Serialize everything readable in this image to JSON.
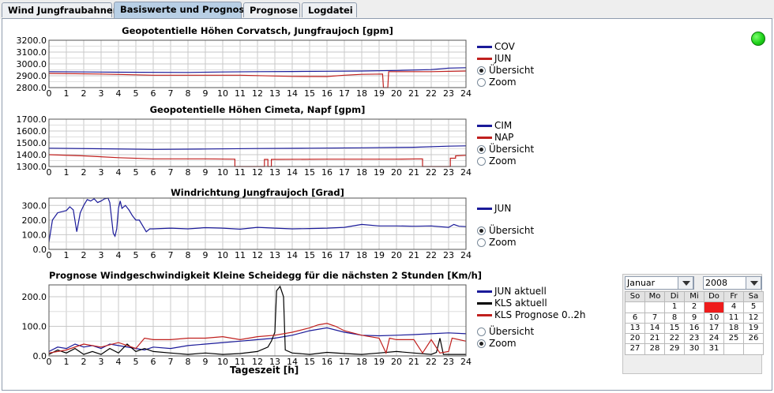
{
  "tabs": [
    {
      "label": "Wind Jungfraubahnen",
      "active": false
    },
    {
      "label": "Basiswerte und Prognose",
      "active": true
    },
    {
      "label": "Prognose",
      "active": false
    },
    {
      "label": "Logdatei",
      "active": false
    }
  ],
  "status_color": "#1fd21a",
  "radio_labels": {
    "overview": "Übersicht",
    "zoom": "Zoom"
  },
  "x_axis_label": "Tageszeit [h]",
  "calendar": {
    "month": "Januar",
    "year": "2008",
    "weekdays": [
      "So",
      "Mo",
      "Di",
      "Mi",
      "Do",
      "Fr",
      "Sa"
    ],
    "weeks": [
      [
        "",
        "",
        "1",
        "2",
        "3",
        "4",
        "5"
      ],
      [
        "6",
        "7",
        "8",
        "9",
        "10",
        "11",
        "12"
      ],
      [
        "13",
        "14",
        "15",
        "16",
        "17",
        "18",
        "19"
      ],
      [
        "20",
        "21",
        "22",
        "23",
        "24",
        "25",
        "26"
      ],
      [
        "27",
        "28",
        "29",
        "30",
        "31",
        "",
        ""
      ]
    ],
    "selected_day": "3",
    "selected_color": "#ee1c1c"
  },
  "chart_data": [
    {
      "type": "line",
      "title": "Geopotentielle Höhen Corvatsch, Jungfraujoch [gpm]",
      "xlim": [
        0,
        24
      ],
      "ylim": [
        2800,
        3200
      ],
      "yticks": [
        "2800.0",
        "2900.0",
        "3000.0",
        "3100.0",
        "3200.0"
      ],
      "xticks": [
        "0",
        "1",
        "2",
        "3",
        "4",
        "5",
        "6",
        "7",
        "8",
        "9",
        "10",
        "11",
        "12",
        "13",
        "14",
        "15",
        "16",
        "17",
        "18",
        "19",
        "20",
        "21",
        "22",
        "23",
        "24"
      ],
      "grid": true,
      "legend_position": "right",
      "mode": "overview",
      "series": [
        {
          "name": "COV",
          "color": "#1a1a99",
          "points": [
            [
              0,
              2935
            ],
            [
              4,
              2930
            ],
            [
              8,
              2928
            ],
            [
              10,
              2932
            ],
            [
              12,
              2935
            ],
            [
              14,
              2936
            ],
            [
              16,
              2938
            ],
            [
              18,
              2940
            ],
            [
              20,
              2945
            ],
            [
              22,
              2952
            ],
            [
              23,
              2965
            ],
            [
              24,
              2968
            ]
          ]
        },
        {
          "name": "JUN",
          "color": "#c0201e",
          "points": [
            [
              0,
              2920
            ],
            [
              3,
              2915
            ],
            [
              6,
              2905
            ],
            [
              9,
              2905
            ],
            [
              11,
              2905
            ],
            [
              13,
              2898
            ],
            [
              14,
              2895
            ],
            [
              16,
              2893
            ],
            [
              17,
              2905
            ],
            [
              18,
              2912
            ],
            [
              19.2,
              2915
            ],
            [
              19.25,
              2800
            ],
            [
              19.5,
              2800
            ],
            [
              19.55,
              2935
            ],
            [
              20,
              2935
            ],
            [
              22,
              2935
            ],
            [
              24,
              2940
            ]
          ]
        }
      ]
    },
    {
      "type": "line",
      "title": "Geopotentielle Höhen Cimeta, Napf [gpm]",
      "xlim": [
        0,
        24
      ],
      "ylim": [
        1300,
        1700
      ],
      "yticks": [
        "1300.0",
        "1400.0",
        "1500.0",
        "1600.0",
        "1700.0"
      ],
      "xticks": [
        "0",
        "1",
        "2",
        "3",
        "4",
        "5",
        "6",
        "7",
        "8",
        "9",
        "10",
        "11",
        "12",
        "13",
        "14",
        "15",
        "16",
        "17",
        "18",
        "19",
        "20",
        "21",
        "22",
        "23",
        "24"
      ],
      "grid": true,
      "legend_position": "right",
      "mode": "overview",
      "series": [
        {
          "name": "CIM",
          "color": "#1a1a99",
          "points": [
            [
              0,
              1455
            ],
            [
              3,
              1450
            ],
            [
              6,
              1445
            ],
            [
              9,
              1448
            ],
            [
              12,
              1452
            ],
            [
              15,
              1455
            ],
            [
              18,
              1458
            ],
            [
              21,
              1463
            ],
            [
              23,
              1472
            ],
            [
              24,
              1475
            ]
          ]
        },
        {
          "name": "NAP",
          "color": "#c0201e",
          "points": [
            [
              0,
              1400
            ],
            [
              2,
              1390
            ],
            [
              4,
              1375
            ],
            [
              6,
              1365
            ],
            [
              9,
              1365
            ],
            [
              10.7,
              1362
            ],
            [
              10.7,
              1300
            ],
            [
              10.8,
              1300
            ],
            [
              10.8,
              1300
            ],
            [
              11.5,
              1300
            ],
            [
              12.4,
              1300
            ],
            [
              12.4,
              1360
            ],
            [
              12.6,
              1360
            ],
            [
              12.6,
              1300
            ],
            [
              12.8,
              1300
            ],
            [
              12.8,
              1360
            ],
            [
              16,
              1362
            ],
            [
              20,
              1362
            ],
            [
              21.5,
              1365
            ],
            [
              21.5,
              1300
            ],
            [
              23.1,
              1300
            ],
            [
              23.1,
              1370
            ],
            [
              23.4,
              1370
            ],
            [
              23.4,
              1390
            ],
            [
              24,
              1395
            ]
          ]
        }
      ]
    },
    {
      "type": "line",
      "title": "Windrichtung Jungfraujoch [Grad]",
      "xlim": [
        0,
        24
      ],
      "ylim": [
        0,
        350
      ],
      "yticks": [
        "0.0",
        "100.0",
        "200.0",
        "300.0"
      ],
      "xticks": [
        "0",
        "1",
        "2",
        "3",
        "4",
        "5",
        "6",
        "7",
        "8",
        "9",
        "10",
        "11",
        "12",
        "13",
        "14",
        "15",
        "16",
        "17",
        "18",
        "19",
        "20",
        "21",
        "22",
        "23",
        "24"
      ],
      "grid": true,
      "legend_position": "right",
      "mode": "overview",
      "series": [
        {
          "name": "JUN",
          "color": "#1a1a99",
          "points": [
            [
              0,
              50
            ],
            [
              0.2,
              200
            ],
            [
              0.5,
              250
            ],
            [
              1,
              265
            ],
            [
              1.2,
              290
            ],
            [
              1.4,
              270
            ],
            [
              1.6,
              120
            ],
            [
              1.8,
              250
            ],
            [
              2,
              300
            ],
            [
              2.2,
              340
            ],
            [
              2.4,
              330
            ],
            [
              2.6,
              345
            ],
            [
              2.8,
              320
            ],
            [
              3,
              330
            ],
            [
              3.2,
              345
            ],
            [
              3.4,
              350
            ],
            [
              3.5,
              320
            ],
            [
              3.7,
              110
            ],
            [
              3.8,
              90
            ],
            [
              3.9,
              140
            ],
            [
              4,
              280
            ],
            [
              4.1,
              330
            ],
            [
              4.2,
              280
            ],
            [
              4.4,
              300
            ],
            [
              4.6,
              270
            ],
            [
              4.8,
              230
            ],
            [
              5,
              200
            ],
            [
              5.2,
              200
            ],
            [
              5.4,
              160
            ],
            [
              5.6,
              120
            ],
            [
              5.8,
              140
            ],
            [
              6,
              140
            ],
            [
              7,
              145
            ],
            [
              8,
              140
            ],
            [
              9,
              148
            ],
            [
              10,
              145
            ],
            [
              11,
              138
            ],
            [
              12,
              150
            ],
            [
              13,
              145
            ],
            [
              14,
              140
            ],
            [
              15,
              142
            ],
            [
              16,
              145
            ],
            [
              17,
              150
            ],
            [
              18,
              170
            ],
            [
              19,
              160
            ],
            [
              20,
              160
            ],
            [
              21,
              158
            ],
            [
              22,
              160
            ],
            [
              23,
              150
            ],
            [
              23.3,
              170
            ],
            [
              23.6,
              158
            ],
            [
              24,
              155
            ]
          ]
        }
      ]
    },
    {
      "type": "line",
      "title": "Prognose Windgeschwindigkeit Kleine Scheidegg für die nächsten 2 Stunden [Km/h]",
      "xlim": [
        0,
        24
      ],
      "ylim": [
        0,
        240
      ],
      "yticks": [
        "0.0",
        "100.0",
        "200.0"
      ],
      "xticks": [
        "0",
        "1",
        "2",
        "3",
        "4",
        "5",
        "6",
        "7",
        "8",
        "9",
        "10",
        "11",
        "12",
        "13",
        "14",
        "15",
        "16",
        "17",
        "18",
        "19",
        "20",
        "21",
        "22",
        "23",
        "24"
      ],
      "grid": true,
      "legend_position": "right",
      "mode": "zoom",
      "series": [
        {
          "name": "JUN aktuell",
          "color": "#1a1a99",
          "points": [
            [
              0,
              15
            ],
            [
              0.5,
              30
            ],
            [
              1,
              25
            ],
            [
              1.5,
              40
            ],
            [
              2,
              30
            ],
            [
              2.5,
              35
            ],
            [
              3,
              25
            ],
            [
              3.5,
              40
            ],
            [
              4,
              35
            ],
            [
              5,
              25
            ],
            [
              5.5,
              20
            ],
            [
              6,
              30
            ],
            [
              7,
              25
            ],
            [
              8,
              35
            ],
            [
              9,
              40
            ],
            [
              10,
              45
            ],
            [
              11,
              50
            ],
            [
              12,
              55
            ],
            [
              13,
              60
            ],
            [
              14,
              70
            ],
            [
              15,
              85
            ],
            [
              16,
              95
            ],
            [
              17,
              80
            ],
            [
              18,
              70
            ],
            [
              19,
              68
            ],
            [
              20,
              70
            ],
            [
              21,
              72
            ],
            [
              22,
              75
            ],
            [
              23,
              78
            ],
            [
              24,
              75
            ]
          ]
        },
        {
          "name": "KLS aktuell",
          "color": "#000000",
          "points": [
            [
              0,
              5
            ],
            [
              0.5,
              20
            ],
            [
              1,
              10
            ],
            [
              1.5,
              25
            ],
            [
              2,
              5
            ],
            [
              2.5,
              15
            ],
            [
              3,
              5
            ],
            [
              3.5,
              25
            ],
            [
              4,
              10
            ],
            [
              4.5,
              40
            ],
            [
              5,
              15
            ],
            [
              5.5,
              25
            ],
            [
              6,
              15
            ],
            [
              7,
              10
            ],
            [
              8,
              5
            ],
            [
              9,
              10
            ],
            [
              10,
              5
            ],
            [
              11,
              8
            ],
            [
              12,
              15
            ],
            [
              12.6,
              30
            ],
            [
              12.8,
              50
            ],
            [
              13,
              80
            ],
            [
              13.1,
              220
            ],
            [
              13.3,
              235
            ],
            [
              13.5,
              200
            ],
            [
              13.6,
              20
            ],
            [
              14,
              10
            ],
            [
              15,
              5
            ],
            [
              16,
              12
            ],
            [
              17,
              8
            ],
            [
              18,
              5
            ],
            [
              19,
              10
            ],
            [
              20,
              15
            ],
            [
              21,
              10
            ],
            [
              22,
              5
            ],
            [
              22.3,
              12
            ],
            [
              22.5,
              60
            ],
            [
              22.7,
              5
            ],
            [
              23,
              5
            ],
            [
              24,
              5
            ]
          ]
        },
        {
          "name": "KLS Prognose 0..2h",
          "color": "#c0201e",
          "points": [
            [
              0,
              10
            ],
            [
              1,
              20
            ],
            [
              2,
              40
            ],
            [
              3,
              30
            ],
            [
              4,
              45
            ],
            [
              5,
              25
            ],
            [
              5.5,
              60
            ],
            [
              6,
              55
            ],
            [
              7,
              55
            ],
            [
              8,
              60
            ],
            [
              9,
              60
            ],
            [
              10,
              65
            ],
            [
              11,
              55
            ],
            [
              12,
              65
            ],
            [
              13,
              70
            ],
            [
              14,
              80
            ],
            [
              15,
              95
            ],
            [
              15.5,
              105
            ],
            [
              16,
              110
            ],
            [
              16.5,
              100
            ],
            [
              17,
              85
            ],
            [
              18,
              70
            ],
            [
              19,
              60
            ],
            [
              19.4,
              10
            ],
            [
              19.6,
              60
            ],
            [
              20,
              55
            ],
            [
              21,
              55
            ],
            [
              21.5,
              10
            ],
            [
              22,
              55
            ],
            [
              22.5,
              10
            ],
            [
              23,
              15
            ],
            [
              23.2,
              60
            ],
            [
              24,
              50
            ]
          ]
        }
      ]
    }
  ]
}
